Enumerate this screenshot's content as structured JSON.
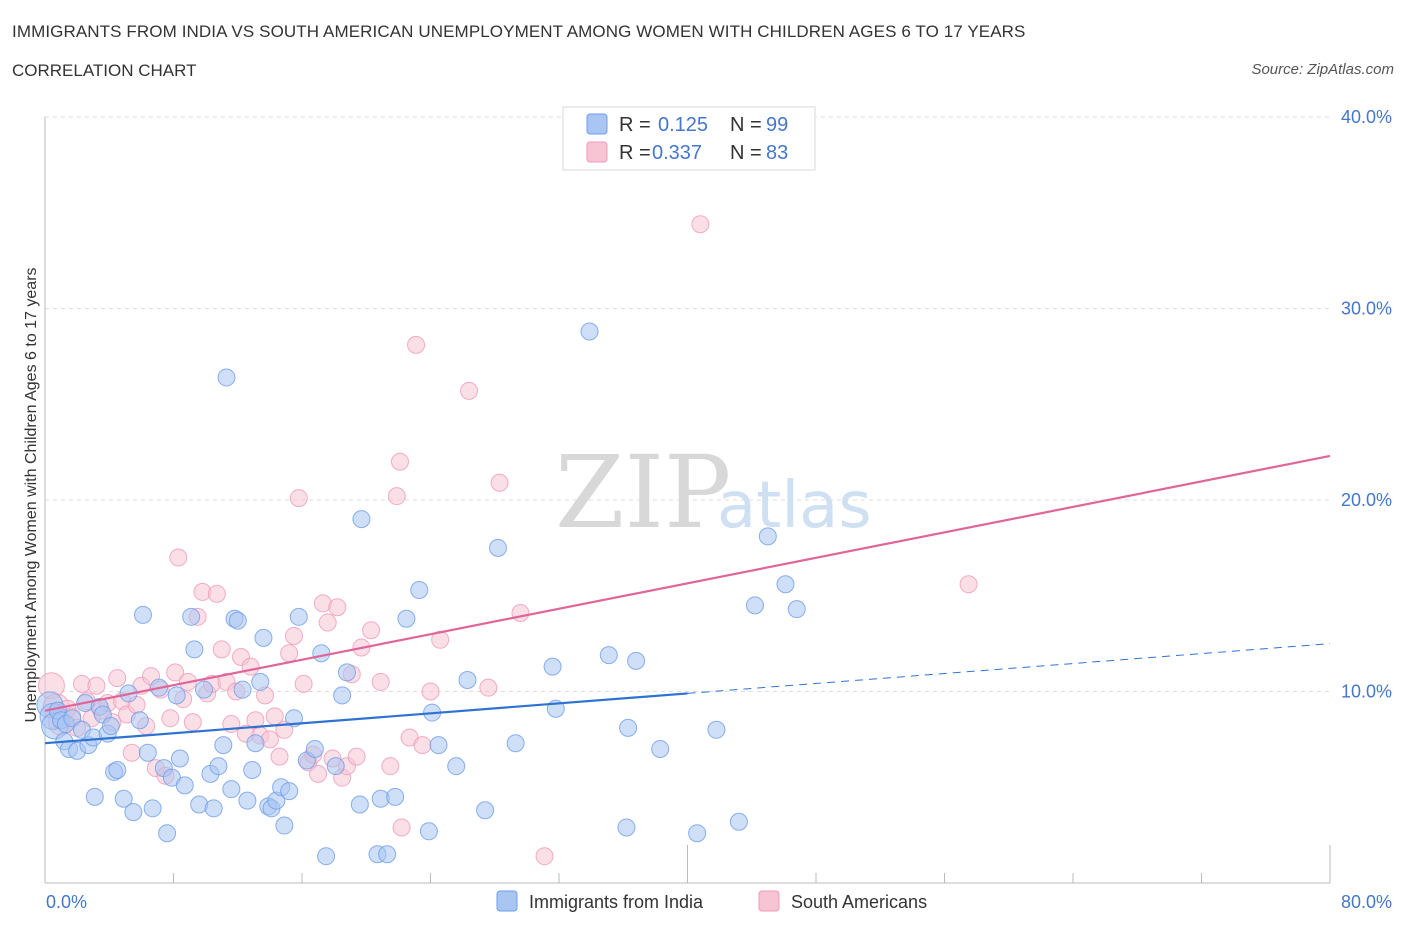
{
  "title": "IMMIGRANTS FROM INDIA VS SOUTH AMERICAN UNEMPLOYMENT AMONG WOMEN WITH CHILDREN AGES 6 TO 17 YEARS",
  "subtitle": "CORRELATION CHART",
  "source": "Source: ZipAtlas.com",
  "watermark": {
    "zip": "ZIP",
    "atlas": "atlas"
  },
  "colors": {
    "india": "#6d9eeb",
    "india_fill": "#a9c5f2",
    "india_line": "#2f73d1",
    "sa": "#f09ab6",
    "sa_fill": "#f7c4d4",
    "sa_line": "#e0669a",
    "axis_text": "#4477cc"
  },
  "legend_top": [
    {
      "r_label": "R = ",
      "r_value": "0.125",
      "n_label": "N = ",
      "n_value": "99"
    },
    {
      "r_label": "R = ",
      "r_value": "0.337",
      "n_label": "N = ",
      "n_value": "83"
    }
  ],
  "chart_data": {
    "type": "scatter",
    "title": "IMMIGRANTS FROM INDIA VS SOUTH AMERICAN UNEMPLOYMENT AMONG WOMEN WITH CHILDREN AGES 6 TO 17 YEARS",
    "xlabel": "",
    "ylabel": "Unemployment Among Women with Children Ages 6 to 17 years",
    "xlim": [
      0,
      80
    ],
    "ylim": [
      0,
      40
    ],
    "x_ticks": [
      {
        "value": 0,
        "label": "0.0%"
      },
      {
        "value": 80,
        "label": "80.0%"
      }
    ],
    "y_ticks": [
      {
        "value": 10,
        "label": "10.0%"
      },
      {
        "value": 20,
        "label": "20.0%"
      },
      {
        "value": 30,
        "label": "30.0%"
      },
      {
        "value": 40,
        "label": "40.0%"
      }
    ],
    "grid": true,
    "legend_position": "bottom",
    "series": [
      {
        "name": "Immigrants from India",
        "R": 0.125,
        "N": 99,
        "trend": {
          "x0": 0,
          "y0": 7.3,
          "x1": 40,
          "y1": 9.9,
          "dashed_to_x": 80,
          "dashed_to_y": 12.5
        },
        "points": [
          [
            0.3,
            9.3
          ],
          [
            0.5,
            8.7
          ],
          [
            0.6,
            8.2
          ],
          [
            0.8,
            9.0
          ],
          [
            1.0,
            8.5
          ],
          [
            1.2,
            7.4
          ],
          [
            1.3,
            8.3
          ],
          [
            1.5,
            7.0
          ],
          [
            1.7,
            8.6
          ],
          [
            2.0,
            6.9
          ],
          [
            2.3,
            8.0
          ],
          [
            2.5,
            9.4
          ],
          [
            2.7,
            7.2
          ],
          [
            3.0,
            7.6
          ],
          [
            3.1,
            4.5
          ],
          [
            3.4,
            9.2
          ],
          [
            3.6,
            8.8
          ],
          [
            3.9,
            7.8
          ],
          [
            4.1,
            8.2
          ],
          [
            4.3,
            5.8
          ],
          [
            4.5,
            5.9
          ],
          [
            4.9,
            4.4
          ],
          [
            5.2,
            9.9
          ],
          [
            5.5,
            3.7
          ],
          [
            5.9,
            8.5
          ],
          [
            6.1,
            14.0
          ],
          [
            6.4,
            6.8
          ],
          [
            6.7,
            3.9
          ],
          [
            7.1,
            10.2
          ],
          [
            7.4,
            6.0
          ],
          [
            7.6,
            2.6
          ],
          [
            7.9,
            5.5
          ],
          [
            8.2,
            9.8
          ],
          [
            8.4,
            6.5
          ],
          [
            8.7,
            5.1
          ],
          [
            9.1,
            13.9
          ],
          [
            9.3,
            12.2
          ],
          [
            9.6,
            4.1
          ],
          [
            9.9,
            10.1
          ],
          [
            10.3,
            5.7
          ],
          [
            10.5,
            3.9
          ],
          [
            10.8,
            6.1
          ],
          [
            11.1,
            7.2
          ],
          [
            11.3,
            26.4
          ],
          [
            11.6,
            4.9
          ],
          [
            11.8,
            13.8
          ],
          [
            12.0,
            13.7
          ],
          [
            12.3,
            10.1
          ],
          [
            12.6,
            4.3
          ],
          [
            12.9,
            5.9
          ],
          [
            13.1,
            7.3
          ],
          [
            13.4,
            10.5
          ],
          [
            13.6,
            12.8
          ],
          [
            13.9,
            4.0
          ],
          [
            14.1,
            3.9
          ],
          [
            14.4,
            4.3
          ],
          [
            14.7,
            5.0
          ],
          [
            14.9,
            3.0
          ],
          [
            15.2,
            4.8
          ],
          [
            15.5,
            8.6
          ],
          [
            15.8,
            13.9
          ],
          [
            16.3,
            6.4
          ],
          [
            16.8,
            7.0
          ],
          [
            17.2,
            12.0
          ],
          [
            17.5,
            1.4
          ],
          [
            18.1,
            6.1
          ],
          [
            18.5,
            9.8
          ],
          [
            18.8,
            11.0
          ],
          [
            19.6,
            4.1
          ],
          [
            19.7,
            19.0
          ],
          [
            20.7,
            1.5
          ],
          [
            20.9,
            4.4
          ],
          [
            21.3,
            1.5
          ],
          [
            21.8,
            4.5
          ],
          [
            22.5,
            13.8
          ],
          [
            23.3,
            15.3
          ],
          [
            23.9,
            2.7
          ],
          [
            24.1,
            8.9
          ],
          [
            24.5,
            7.2
          ],
          [
            25.6,
            6.1
          ],
          [
            26.3,
            10.6
          ],
          [
            27.4,
            3.8
          ],
          [
            28.2,
            17.5
          ],
          [
            29.3,
            7.3
          ],
          [
            31.6,
            11.3
          ],
          [
            33.9,
            28.8
          ],
          [
            35.1,
            11.9
          ],
          [
            36.2,
            2.9
          ],
          [
            36.3,
            8.1
          ],
          [
            43.2,
            3.2
          ],
          [
            46.8,
            14.3
          ],
          [
            46.1,
            15.6
          ],
          [
            44.2,
            14.5
          ],
          [
            45.0,
            18.1
          ],
          [
            40.6,
            2.6
          ],
          [
            41.8,
            8.0
          ],
          [
            36.8,
            11.6
          ],
          [
            38.3,
            7.0
          ],
          [
            31.8,
            9.1
          ]
        ]
      },
      {
        "name": "South Americans",
        "R": 0.337,
        "N": 83,
        "trend": {
          "x0": 0,
          "y0": 9.0,
          "x1": 80,
          "y1": 22.3
        },
        "points": [
          [
            0.4,
            10.3
          ],
          [
            0.7,
            9.2
          ],
          [
            1.0,
            8.4
          ],
          [
            1.4,
            9.1
          ],
          [
            1.7,
            8.7
          ],
          [
            2.0,
            8.1
          ],
          [
            2.3,
            10.4
          ],
          [
            2.6,
            9.5
          ],
          [
            2.9,
            8.6
          ],
          [
            3.2,
            10.3
          ],
          [
            3.5,
            9.0
          ],
          [
            3.9,
            9.4
          ],
          [
            4.2,
            8.4
          ],
          [
            4.5,
            10.7
          ],
          [
            4.8,
            9.5
          ],
          [
            5.1,
            8.8
          ],
          [
            5.4,
            6.8
          ],
          [
            5.7,
            9.3
          ],
          [
            6.0,
            10.3
          ],
          [
            6.3,
            8.2
          ],
          [
            6.6,
            10.8
          ],
          [
            6.9,
            6.0
          ],
          [
            7.2,
            10.1
          ],
          [
            7.5,
            5.6
          ],
          [
            7.8,
            8.6
          ],
          [
            8.1,
            11.0
          ],
          [
            8.3,
            17.0
          ],
          [
            8.6,
            9.6
          ],
          [
            8.9,
            10.5
          ],
          [
            9.2,
            8.4
          ],
          [
            9.5,
            13.9
          ],
          [
            9.8,
            15.2
          ],
          [
            10.1,
            9.9
          ],
          [
            10.4,
            10.4
          ],
          [
            10.7,
            15.1
          ],
          [
            11.0,
            12.2
          ],
          [
            11.3,
            10.5
          ],
          [
            11.6,
            8.3
          ],
          [
            11.9,
            10.0
          ],
          [
            12.2,
            11.8
          ],
          [
            12.5,
            7.8
          ],
          [
            12.8,
            11.3
          ],
          [
            13.1,
            8.5
          ],
          [
            13.4,
            7.7
          ],
          [
            13.7,
            9.8
          ],
          [
            14.0,
            7.5
          ],
          [
            14.3,
            8.7
          ],
          [
            14.6,
            6.6
          ],
          [
            14.9,
            8.0
          ],
          [
            15.2,
            12.0
          ],
          [
            15.5,
            12.9
          ],
          [
            15.8,
            20.1
          ],
          [
            16.1,
            10.4
          ],
          [
            16.4,
            6.3
          ],
          [
            16.7,
            6.7
          ],
          [
            17.0,
            5.7
          ],
          [
            17.3,
            14.6
          ],
          [
            17.6,
            13.6
          ],
          [
            17.9,
            6.5
          ],
          [
            18.2,
            14.4
          ],
          [
            18.5,
            5.5
          ],
          [
            18.8,
            6.1
          ],
          [
            19.1,
            10.9
          ],
          [
            19.4,
            6.6
          ],
          [
            19.7,
            12.3
          ],
          [
            20.3,
            13.2
          ],
          [
            20.9,
            10.5
          ],
          [
            21.5,
            6.1
          ],
          [
            21.9,
            20.2
          ],
          [
            22.1,
            22.0
          ],
          [
            22.7,
            7.6
          ],
          [
            23.1,
            28.1
          ],
          [
            23.5,
            7.2
          ],
          [
            24.0,
            10.0
          ],
          [
            24.6,
            12.7
          ],
          [
            26.4,
            25.7
          ],
          [
            27.6,
            10.2
          ],
          [
            28.3,
            20.9
          ],
          [
            29.6,
            14.1
          ],
          [
            31.1,
            1.4
          ],
          [
            40.8,
            34.4
          ],
          [
            57.5,
            15.6
          ],
          [
            22.2,
            2.9
          ]
        ]
      }
    ]
  }
}
